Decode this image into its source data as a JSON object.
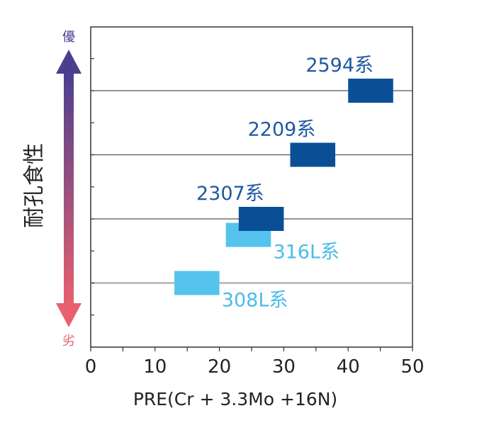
{
  "chart_data": {
    "type": "range-bar",
    "xlabel": "PRE(Cr + 3.3Mo +16N)",
    "xlim": [
      0,
      50
    ],
    "xticks": [
      0,
      10,
      20,
      30,
      40,
      50
    ],
    "side_axis": {
      "title": "耐孔食性",
      "top_label": "優",
      "bottom_label": "劣",
      "top_color": "#4a3f8f",
      "bottom_color": "#e8606e"
    },
    "series": [
      {
        "name": "2594系",
        "x_range": [
          40,
          47
        ],
        "level": 4,
        "color": "#0a4f96",
        "label_color": "#1e5aa0"
      },
      {
        "name": "2209系",
        "x_range": [
          31,
          38
        ],
        "level": 3,
        "color": "#0a4f96",
        "label_color": "#1e5aa0"
      },
      {
        "name": "2307系",
        "x_range": [
          23,
          30
        ],
        "level": 2,
        "color": "#0a4f96",
        "label_color": "#1e5aa0"
      },
      {
        "name": "316L系",
        "x_range": [
          21,
          28
        ],
        "level": 1.75,
        "color": "#55c3ee",
        "label_color": "#4dbbe8"
      },
      {
        "name": "308L系",
        "x_range": [
          13,
          20
        ],
        "level": 1,
        "color": "#55c3ee",
        "label_color": "#4dbbe8"
      }
    ],
    "grid_levels": [
      1,
      2,
      3,
      4
    ],
    "grid": true
  }
}
